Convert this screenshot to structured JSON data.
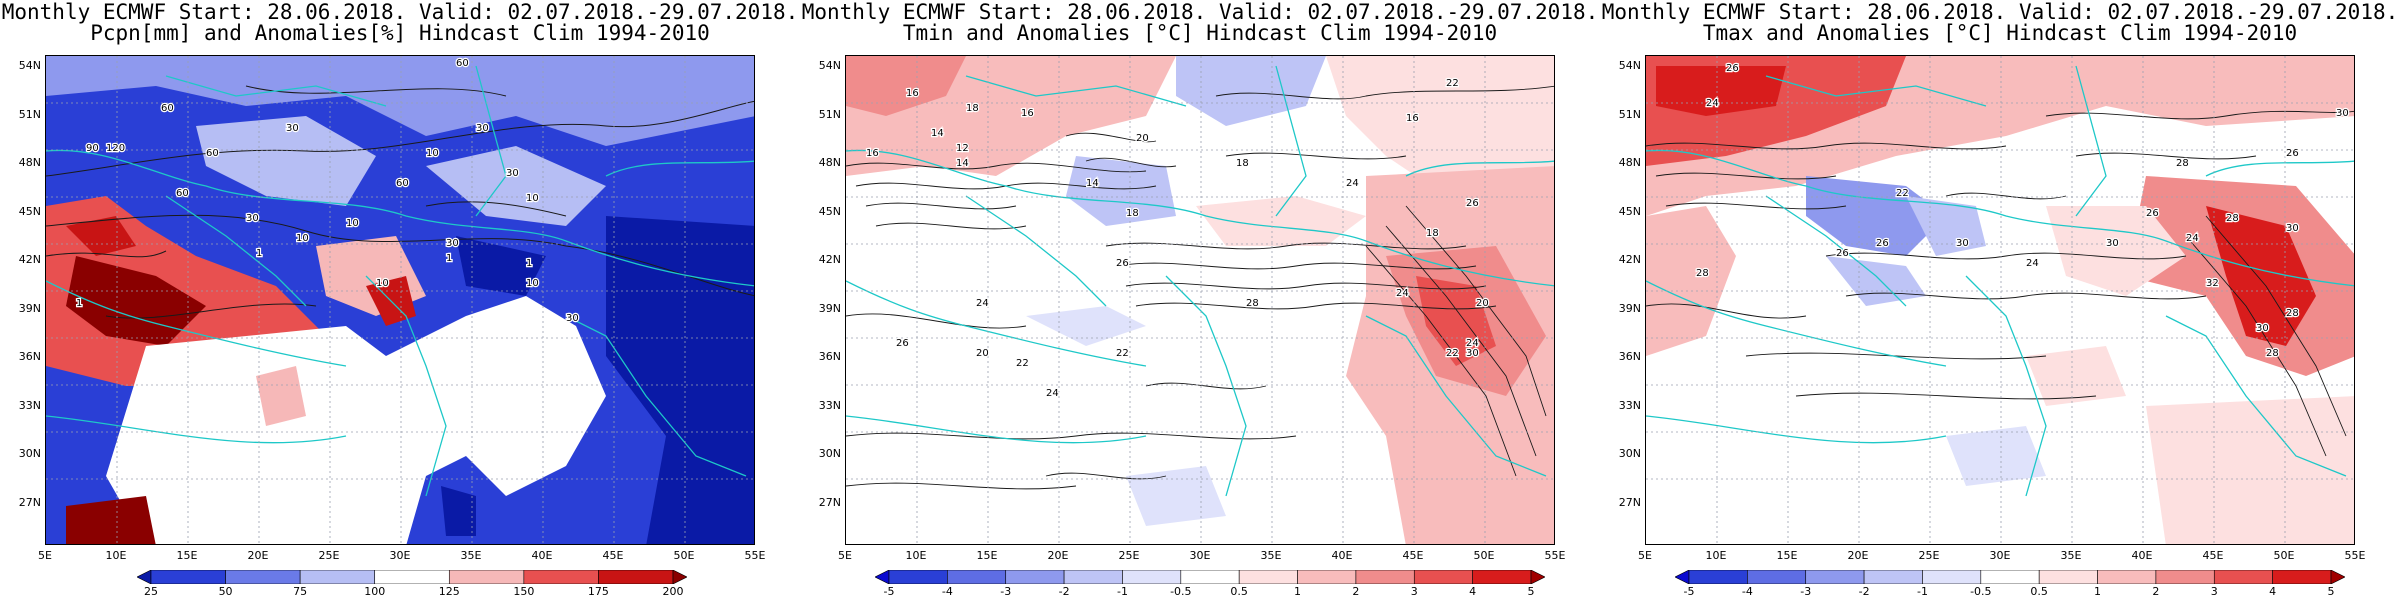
{
  "panels": [
    {
      "title_line1": "Monthly ECMWF Start: 28.06.2018. Valid: 02.07.2018.-29.07.2018.",
      "title_line2": "Pcpn[mm] and Anomalies[%] Hindcast Clim 1994-2010",
      "colorbar_labels": [
        "25",
        "50",
        "75",
        "100",
        "125",
        "150",
        "175",
        "200"
      ],
      "colorbar_colors": [
        "#0a1aa6",
        "#2a3fd6",
        "#6a7ae8",
        "#b6bef4",
        "#ffffff",
        "#f6b8b8",
        "#e85050",
        "#c81414",
        "#8a0000"
      ],
      "contour_labels": [
        "60",
        "30",
        "90",
        "120",
        "60",
        "60",
        "30",
        "10",
        "30",
        "60",
        "10",
        "60",
        "30",
        "10",
        "1",
        "10",
        "30",
        "10",
        "1",
        "30",
        "1",
        "10",
        "1"
      ]
    },
    {
      "title_line1": "Monthly ECMWF Start: 28.06.2018. Valid: 02.07.2018.-29.07.2018.",
      "title_line2": "Tmin and Anomalies [°C] Hindcast Clim 1994-2010",
      "colorbar_labels": [
        "-5",
        "-4",
        "-3",
        "-2",
        "-1",
        "-0.5",
        "0.5",
        "1",
        "2",
        "3",
        "4",
        "5"
      ],
      "colorbar_colors": [
        "#0a0ad0",
        "#2a3fd6",
        "#5e6de4",
        "#8e99ee",
        "#bec4f6",
        "#dfe2fb",
        "#ffffff",
        "#fde0e0",
        "#f8bcbc",
        "#f08c8c",
        "#e85050",
        "#d81c1c",
        "#a00000"
      ],
      "contour_labels": [
        "16",
        "18",
        "16",
        "14",
        "12",
        "14",
        "16",
        "20",
        "18",
        "14",
        "18",
        "16",
        "22",
        "24",
        "26",
        "18",
        "20",
        "24",
        "22",
        "24",
        "26",
        "28",
        "30",
        "22",
        "24",
        "26",
        "20",
        "22",
        "24"
      ]
    },
    {
      "title_line1": "Monthly ECMWF Start: 28.06.2018. Valid: 02.07.2018.-29.07.2018.",
      "title_line2": "Tmax and Anomalies [°C] Hindcast Clim 1994-2010",
      "colorbar_labels": [
        "-5",
        "-4",
        "-3",
        "-2",
        "-1",
        "-0.5",
        "0.5",
        "1",
        "2",
        "3",
        "4",
        "5"
      ],
      "colorbar_colors": [
        "#0a0ad0",
        "#2a3fd6",
        "#5e6de4",
        "#8e99ee",
        "#bec4f6",
        "#dfe2fb",
        "#ffffff",
        "#fde0e0",
        "#f8bcbc",
        "#f08c8c",
        "#e85050",
        "#d81c1c",
        "#a00000"
      ],
      "contour_labels": [
        "24",
        "26",
        "26",
        "30",
        "28",
        "24",
        "26",
        "22",
        "28",
        "26",
        "24",
        "28",
        "30",
        "28",
        "26",
        "30",
        "32",
        "28",
        "30",
        "30"
      ]
    }
  ],
  "lat_labels": [
    "54N",
    "51N",
    "48N",
    "45N",
    "42N",
    "39N",
    "36N",
    "33N",
    "30N",
    "27N"
  ],
  "lon_labels": [
    "5E",
    "10E",
    "15E",
    "20E",
    "25E",
    "30E",
    "35E",
    "40E",
    "45E",
    "50E",
    "55E"
  ]
}
